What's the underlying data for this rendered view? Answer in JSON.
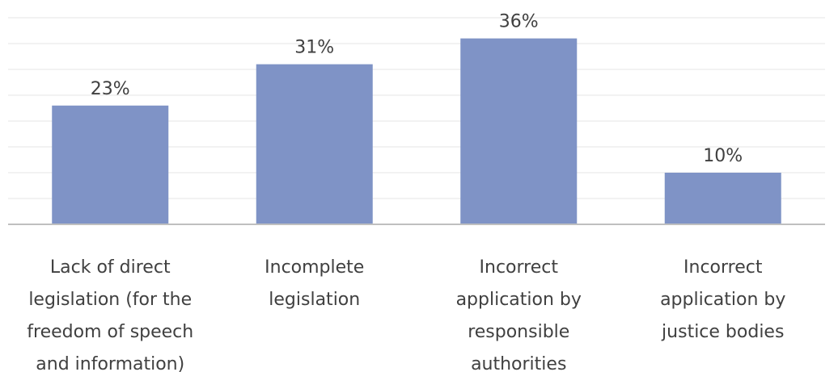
{
  "chart_data": {
    "type": "bar",
    "title": "",
    "xlabel": "",
    "ylabel": "",
    "categories": [
      [
        "Lack of direct",
        "legislation (for the",
        "freedom of speech",
        "and information)"
      ],
      [
        "Incomplete",
        "legislation"
      ],
      [
        "Incorrect",
        "application by",
        "responsible",
        "authorities"
      ],
      [
        "Incorrect",
        "application by",
        "justice bodies"
      ]
    ],
    "values": [
      23,
      31,
      36,
      10
    ],
    "data_labels": [
      "23%",
      "31%",
      "36%",
      "10%"
    ],
    "unit": "%",
    "ylim": [
      0,
      40
    ],
    "grid": true,
    "bar_color": "#7F93C6",
    "axis_color": "#bfbfbf",
    "grid_color": "#e6e6e6"
  }
}
